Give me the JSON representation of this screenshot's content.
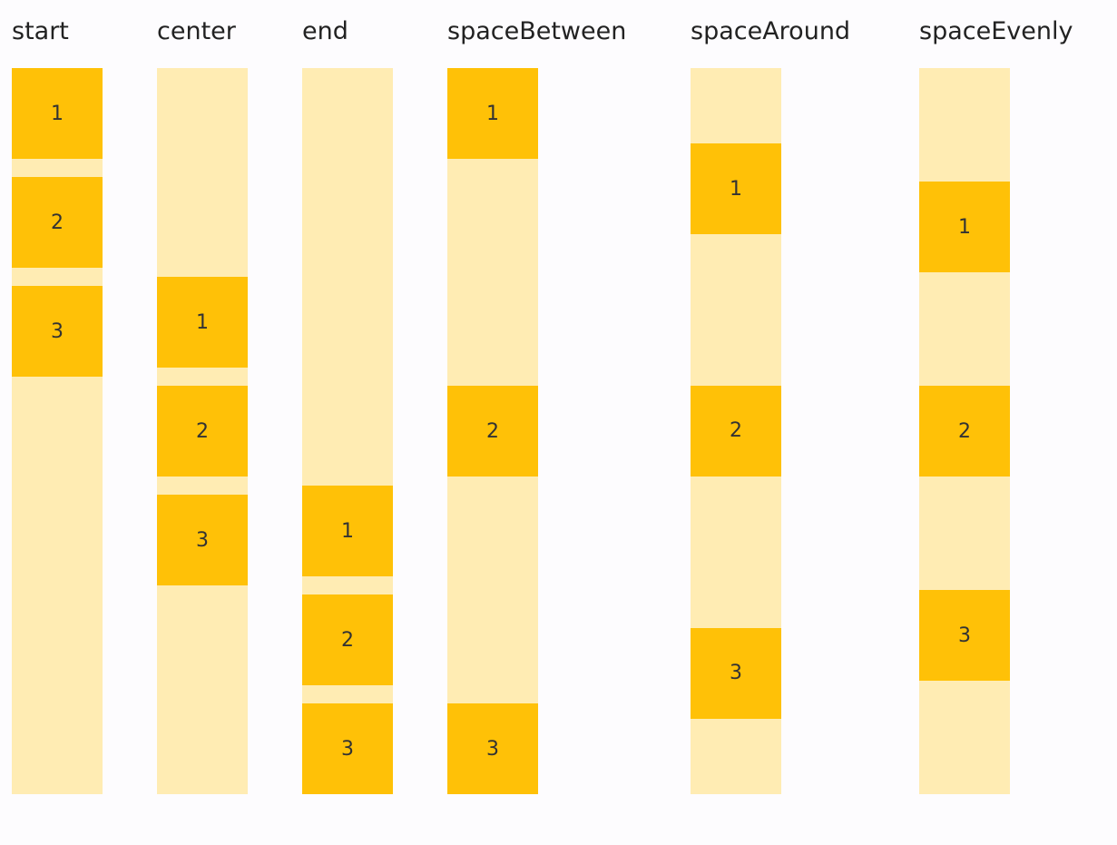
{
  "columns": [
    {
      "label": "start",
      "items": [
        "1",
        "2",
        "3"
      ]
    },
    {
      "label": "center",
      "items": [
        "1",
        "2",
        "3"
      ]
    },
    {
      "label": "end",
      "items": [
        "1",
        "2",
        "3"
      ]
    },
    {
      "label": "spaceBetween",
      "items": [
        "1",
        "2",
        "3"
      ]
    },
    {
      "label": "spaceAround",
      "items": [
        "1",
        "2",
        "3"
      ]
    },
    {
      "label": "spaceEvenly",
      "items": [
        "1",
        "2",
        "3"
      ]
    }
  ]
}
